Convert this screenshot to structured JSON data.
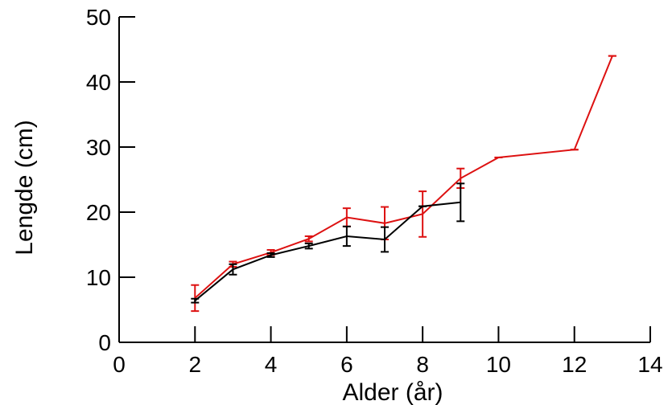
{
  "chart_data": {
    "type": "line",
    "title": "",
    "xlabel": "Alder (år)",
    "ylabel": "Lengde (cm)",
    "xlim": [
      0,
      14
    ],
    "ylim": [
      0,
      50
    ],
    "xticks": [
      0,
      2,
      4,
      6,
      8,
      10,
      12,
      14
    ],
    "yticks": [
      0,
      10,
      20,
      30,
      40,
      50
    ],
    "grid": false,
    "legend": "none",
    "series": [
      {
        "color": "#dd1111",
        "x": [
          2,
          3,
          4,
          5,
          6,
          7,
          8,
          9,
          10,
          12,
          13
        ],
        "y": [
          6.8,
          12.0,
          13.8,
          15.9,
          19.2,
          18.3,
          19.7,
          25.2,
          28.4,
          29.6,
          44.0
        ],
        "err": [
          2.0,
          0.4,
          0.4,
          0.4,
          1.4,
          2.5,
          3.5,
          1.5,
          0.0,
          0.0,
          0.0
        ]
      },
      {
        "color": "#000000",
        "x": [
          2,
          3,
          4,
          5,
          6,
          7,
          8,
          9
        ],
        "y": [
          6.4,
          11.2,
          13.4,
          14.8,
          16.3,
          15.8,
          20.9,
          21.5
        ],
        "err": [
          0.3,
          0.8,
          0.3,
          0.4,
          1.5,
          1.9,
          0.0,
          2.9
        ]
      }
    ]
  }
}
